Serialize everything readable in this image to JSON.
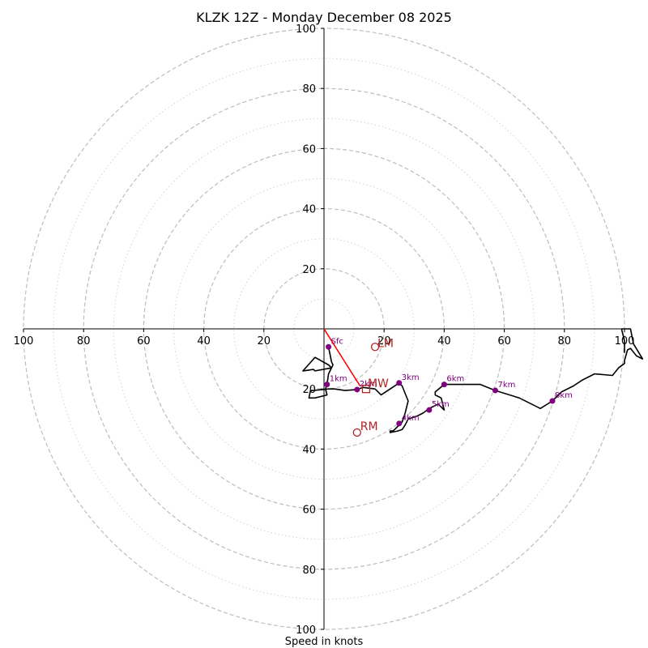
{
  "chart_data": {
    "type": "hodograph",
    "title": "KLZK 12Z - Monday December 08 2025",
    "xlabel": "Speed in knots",
    "units": "knots",
    "range": [
      -100,
      100
    ],
    "major_rings": [
      20,
      40,
      60,
      80,
      100
    ],
    "minor_rings": [
      10,
      30,
      50,
      70,
      90
    ],
    "x_tick_labels": [
      "100",
      "80",
      "60",
      "40",
      "20",
      "20",
      "40",
      "60",
      "80",
      "100"
    ],
    "y_tick_labels": [
      "100",
      "80",
      "60",
      "40",
      "20",
      "20",
      "40",
      "60",
      "80",
      "100"
    ],
    "x_tick_values": [
      -100,
      -80,
      -60,
      -40,
      -20,
      20,
      40,
      60,
      80,
      100
    ],
    "y_tick_values": [
      100,
      80,
      60,
      40,
      20,
      -20,
      -40,
      -60,
      -80,
      -100
    ],
    "trace": [
      [
        1.5,
        -6
      ],
      [
        2.5,
        -11
      ],
      [
        3,
        -12
      ],
      [
        2.5,
        -13
      ],
      [
        -3,
        -14
      ],
      [
        -3.5,
        -13.5
      ],
      [
        -7,
        -14
      ],
      [
        -3,
        -9.5
      ],
      [
        1.5,
        -12
      ],
      [
        2.5,
        -13
      ],
      [
        1.5,
        -15
      ],
      [
        1,
        -18.5
      ],
      [
        0.5,
        -20
      ],
      [
        1,
        -22
      ],
      [
        -3,
        -23
      ],
      [
        -5,
        -23
      ],
      [
        -4.5,
        -20.5
      ],
      [
        -3.5,
        -20.5
      ],
      [
        1.5,
        -20
      ],
      [
        3.5,
        -20
      ],
      [
        7,
        -20.5
      ],
      [
        11,
        -20.2
      ],
      [
        13,
        -19.5
      ],
      [
        17,
        -20
      ],
      [
        19,
        -22
      ],
      [
        22,
        -20
      ],
      [
        25,
        -18
      ],
      [
        26,
        -19
      ],
      [
        28,
        -24
      ],
      [
        27,
        -28
      ],
      [
        26,
        -31
      ],
      [
        25,
        -32
      ],
      [
        24,
        -33
      ],
      [
        23,
        -34
      ],
      [
        22,
        -34
      ],
      [
        22,
        -34.5
      ],
      [
        24.5,
        -34
      ],
      [
        26,
        -33.5
      ],
      [
        27,
        -32
      ],
      [
        28,
        -30
      ],
      [
        31,
        -29
      ],
      [
        33,
        -28
      ],
      [
        35,
        -26.5
      ],
      [
        36,
        -26
      ],
      [
        38,
        -25
      ],
      [
        39,
        -26
      ],
      [
        40,
        -27
      ],
      [
        39,
        -23
      ],
      [
        37,
        -22
      ],
      [
        37,
        -21
      ],
      [
        40,
        -18.5
      ],
      [
        50,
        -18.5
      ],
      [
        52,
        -18.5
      ],
      [
        57,
        -20.5
      ],
      [
        65,
        -23
      ],
      [
        72,
        -26.5
      ],
      [
        76,
        -24
      ],
      [
        79,
        -21
      ],
      [
        83,
        -19
      ],
      [
        86,
        -17
      ],
      [
        90,
        -15
      ],
      [
        96,
        -15.5
      ],
      [
        98,
        -13
      ],
      [
        100,
        -11.5
      ],
      [
        100,
        -10.5
      ],
      [
        101,
        -7
      ],
      [
        102,
        -6.5
      ],
      [
        104,
        -9
      ],
      [
        106,
        -10
      ],
      [
        103,
        -5
      ],
      [
        102,
        0
      ],
      [
        100,
        0
      ],
      [
        99,
        0
      ],
      [
        100,
        -4
      ],
      [
        100,
        -8
      ]
    ],
    "height_markers": [
      {
        "label": "Sfc",
        "u": 1.5,
        "v": -6
      },
      {
        "label": "1km",
        "u": 1,
        "v": -18.5
      },
      {
        "label": "2km",
        "u": 11,
        "v": -20.2
      },
      {
        "label": "3km",
        "u": 25,
        "v": -18
      },
      {
        "label": "4km",
        "u": 25,
        "v": -31.5
      },
      {
        "label": "5km",
        "u": 35,
        "v": -27
      },
      {
        "label": "6km",
        "u": 40,
        "v": -18.5
      },
      {
        "label": "7km",
        "u": 57,
        "v": -20.5
      },
      {
        "label": "8km",
        "u": 76,
        "v": -24
      }
    ],
    "shear_line": [
      [
        0,
        0
      ],
      [
        12,
        -19
      ]
    ],
    "storm_motion": {
      "LM": {
        "label": "LM",
        "u": 17,
        "v": -6
      },
      "MW": {
        "label": "MW",
        "u": 14,
        "v": -20
      },
      "RM": {
        "label": "RM",
        "u": 11,
        "v": -34.5
      }
    },
    "colors": {
      "trace": "#000000",
      "marker": "#800080",
      "motion": "#b22222",
      "shear_line": "#ff0000",
      "grid": "#bdbdbd",
      "minor_grid": "#d3d3d3"
    }
  }
}
